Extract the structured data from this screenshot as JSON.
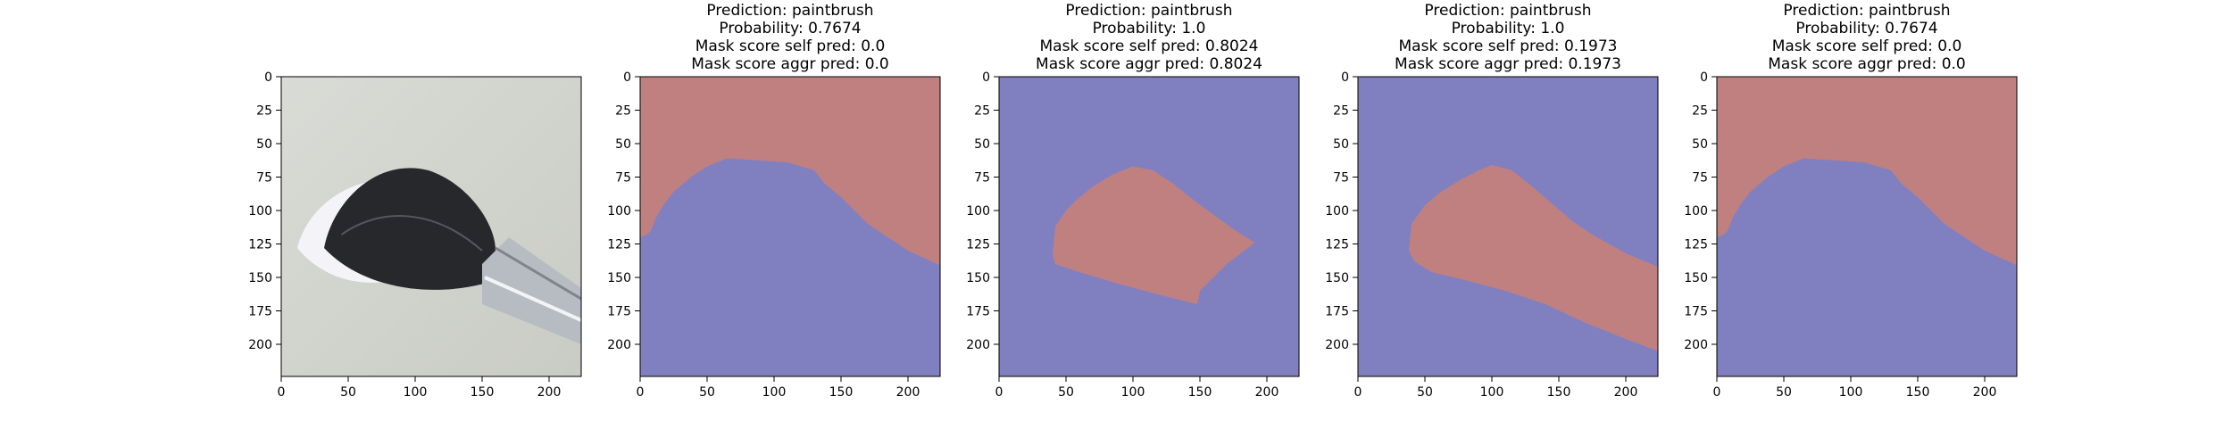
{
  "figure": {
    "background": "#ffffff",
    "mask_colors": {
      "background": "#8080c0",
      "object": "#c08080"
    }
  },
  "chart_data": [
    {
      "type": "image",
      "panel": "input-image",
      "image_description": "Paintbrush with black and white bristles and silver ferrule on light background",
      "title_lines": [],
      "xlim": [
        0,
        224
      ],
      "ylim": [
        224,
        0
      ],
      "xticks": [
        0,
        50,
        100,
        150,
        200
      ],
      "yticks": [
        0,
        25,
        50,
        75,
        100,
        125,
        150,
        175,
        200
      ]
    },
    {
      "type": "heatmap",
      "panel": "mask-1",
      "title_lines": [
        "Prediction: paintbrush",
        "Probability: 0.7674",
        "Mask score self pred: 0.0",
        "Mask score aggr pred: 0.0"
      ],
      "region_label": "object",
      "region_polygon": [
        [
          0,
          0
        ],
        [
          224,
          0
        ],
        [
          224,
          141
        ],
        [
          200,
          130
        ],
        [
          170,
          110
        ],
        [
          150,
          90
        ],
        [
          138,
          80
        ],
        [
          130,
          70
        ],
        [
          110,
          64
        ],
        [
          80,
          62
        ],
        [
          65,
          61
        ],
        [
          50,
          67
        ],
        [
          38,
          75
        ],
        [
          25,
          86
        ],
        [
          18,
          95
        ],
        [
          12,
          105
        ],
        [
          8,
          115
        ],
        [
          5,
          118
        ],
        [
          0,
          120
        ]
      ],
      "xlim": [
        0,
        224
      ],
      "ylim": [
        224,
        0
      ],
      "xticks": [
        0,
        50,
        100,
        150,
        200
      ],
      "yticks": [
        0,
        25,
        50,
        75,
        100,
        125,
        150,
        175,
        200
      ]
    },
    {
      "type": "heatmap",
      "panel": "mask-2",
      "title_lines": [
        "Prediction: paintbrush",
        "Probability: 1.0",
        "Mask score self pred: 0.8024",
        "Mask score aggr pred: 0.8024"
      ],
      "region_label": "object",
      "region_polygon": [
        [
          40,
          133
        ],
        [
          42,
          112
        ],
        [
          50,
          100
        ],
        [
          58,
          92
        ],
        [
          70,
          82
        ],
        [
          85,
          73
        ],
        [
          100,
          67
        ],
        [
          115,
          70
        ],
        [
          130,
          80
        ],
        [
          145,
          92
        ],
        [
          160,
          103
        ],
        [
          175,
          114
        ],
        [
          191,
          124
        ],
        [
          170,
          140
        ],
        [
          150,
          160
        ],
        [
          148,
          170
        ],
        [
          120,
          163
        ],
        [
          90,
          155
        ],
        [
          60,
          146
        ],
        [
          42,
          140
        ]
      ],
      "xlim": [
        0,
        224
      ],
      "ylim": [
        224,
        0
      ],
      "xticks": [
        0,
        50,
        100,
        150,
        200
      ],
      "yticks": [
        0,
        25,
        50,
        75,
        100,
        125,
        150,
        175,
        200
      ]
    },
    {
      "type": "heatmap",
      "panel": "mask-3",
      "title_lines": [
        "Prediction: paintbrush",
        "Probability: 1.0",
        "Mask score self pred: 0.1973",
        "Mask score aggr pred: 0.1973"
      ],
      "region_label": "object",
      "region_polygon": [
        [
          38,
          130
        ],
        [
          40,
          110
        ],
        [
          50,
          96
        ],
        [
          62,
          86
        ],
        [
          75,
          78
        ],
        [
          90,
          70
        ],
        [
          100,
          66
        ],
        [
          115,
          70
        ],
        [
          130,
          82
        ],
        [
          145,
          95
        ],
        [
          160,
          108
        ],
        [
          175,
          118
        ],
        [
          200,
          132
        ],
        [
          224,
          142
        ],
        [
          224,
          205
        ],
        [
          200,
          196
        ],
        [
          170,
          184
        ],
        [
          140,
          170
        ],
        [
          110,
          160
        ],
        [
          80,
          152
        ],
        [
          55,
          146
        ],
        [
          42,
          138
        ]
      ],
      "xlim": [
        0,
        224
      ],
      "ylim": [
        224,
        0
      ],
      "xticks": [
        0,
        50,
        100,
        150,
        200
      ],
      "yticks": [
        0,
        25,
        50,
        75,
        100,
        125,
        150,
        175,
        200
      ]
    },
    {
      "type": "heatmap",
      "panel": "mask-4",
      "title_lines": [
        "Prediction: paintbrush",
        "Probability: 0.7674",
        "Mask score self pred: 0.0",
        "Mask score aggr pred: 0.0"
      ],
      "region_label": "object",
      "region_polygon": [
        [
          0,
          0
        ],
        [
          224,
          0
        ],
        [
          224,
          141
        ],
        [
          200,
          130
        ],
        [
          170,
          110
        ],
        [
          150,
          90
        ],
        [
          138,
          80
        ],
        [
          130,
          70
        ],
        [
          110,
          64
        ],
        [
          80,
          62
        ],
        [
          65,
          61
        ],
        [
          50,
          67
        ],
        [
          38,
          75
        ],
        [
          25,
          86
        ],
        [
          18,
          95
        ],
        [
          12,
          105
        ],
        [
          8,
          115
        ],
        [
          5,
          118
        ],
        [
          0,
          120
        ]
      ],
      "xlim": [
        0,
        224
      ],
      "ylim": [
        224,
        0
      ],
      "xticks": [
        0,
        50,
        100,
        150,
        200
      ],
      "yticks": [
        0,
        25,
        50,
        75,
        100,
        125,
        150,
        175,
        200
      ]
    }
  ]
}
